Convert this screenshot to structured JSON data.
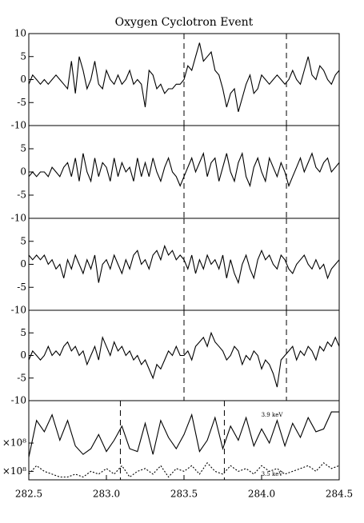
{
  "chart_data": [
    {
      "type": "line",
      "title": "Oxygen Cyclotron Event",
      "x": [
        282.5,
        282.525,
        282.55,
        282.575,
        282.6,
        282.625,
        282.65,
        282.675,
        282.7,
        282.725,
        282.75,
        282.775,
        282.8,
        282.825,
        282.85,
        282.875,
        282.9,
        282.925,
        282.95,
        282.975,
        283.0,
        283.025,
        283.05,
        283.075,
        283.1,
        283.125,
        283.15,
        283.175,
        283.2,
        283.225,
        283.25,
        283.275,
        283.3,
        283.325,
        283.35,
        283.375,
        283.4,
        283.425,
        283.45,
        283.475,
        283.5,
        283.525,
        283.55,
        283.575,
        283.6,
        283.625,
        283.65,
        283.675,
        283.7,
        283.725,
        283.75,
        283.775,
        283.8,
        283.825,
        283.85,
        283.875,
        283.9,
        283.925,
        283.95,
        283.975,
        284.0,
        284.025,
        284.05,
        284.075,
        284.1,
        284.125,
        284.15,
        284.175,
        284.2,
        284.225,
        284.25,
        284.275,
        284.3,
        284.325,
        284.35,
        284.375,
        284.4,
        284.425,
        284.45,
        284.475,
        284.5
      ],
      "series": [
        {
          "color": "#000000",
          "values": [
            -1,
            1,
            0,
            -1,
            0,
            -1,
            0,
            1,
            0,
            -1,
            -2,
            4,
            -3,
            5,
            2,
            -2,
            0,
            4,
            -1,
            -2,
            2,
            0,
            -1,
            1,
            -1,
            0,
            2,
            -1,
            0,
            -1,
            -6,
            2,
            1,
            -2,
            -1,
            -3,
            -2,
            -2,
            -1,
            -1,
            0,
            3,
            2,
            5,
            8,
            4,
            5,
            6,
            2,
            1,
            -2,
            -6,
            -3,
            -2,
            -7,
            -4,
            -1,
            1,
            -3,
            -2,
            1,
            0,
            -1,
            0,
            1,
            0,
            -1,
            0,
            2,
            0,
            -1,
            2,
            5,
            1,
            0,
            3,
            2,
            0,
            -1,
            1,
            2
          ]
        }
      ],
      "vlines": [
        283.5,
        284.16
      ],
      "xlim": [
        282.5,
        284.5
      ],
      "ylim": [
        -10,
        10
      ],
      "yticks": [
        -10,
        -5,
        0,
        5,
        10
      ]
    },
    {
      "type": "line",
      "x": [
        282.5,
        282.525,
        282.55,
        282.575,
        282.6,
        282.625,
        282.65,
        282.675,
        282.7,
        282.725,
        282.75,
        282.775,
        282.8,
        282.825,
        282.85,
        282.875,
        282.9,
        282.925,
        282.95,
        282.975,
        283.0,
        283.025,
        283.05,
        283.075,
        283.1,
        283.125,
        283.15,
        283.175,
        283.2,
        283.225,
        283.25,
        283.275,
        283.3,
        283.325,
        283.35,
        283.375,
        283.4,
        283.425,
        283.45,
        283.475,
        283.5,
        283.525,
        283.55,
        283.575,
        283.6,
        283.625,
        283.65,
        283.675,
        283.7,
        283.725,
        283.75,
        283.775,
        283.8,
        283.825,
        283.85,
        283.875,
        283.9,
        283.925,
        283.95,
        283.975,
        284.0,
        284.025,
        284.05,
        284.075,
        284.1,
        284.125,
        284.15,
        284.175,
        284.2,
        284.225,
        284.25,
        284.275,
        284.3,
        284.325,
        284.35,
        284.375,
        284.4,
        284.425,
        284.45,
        284.475,
        284.5
      ],
      "series": [
        {
          "color": "#000000",
          "values": [
            -1,
            0,
            -1,
            0,
            0,
            -1,
            1,
            0,
            -1,
            1,
            2,
            -1,
            3,
            -2,
            4,
            0,
            -2,
            3,
            -1,
            2,
            1,
            -2,
            3,
            -1,
            2,
            0,
            1,
            -2,
            3,
            -1,
            2,
            -1,
            3,
            0,
            -2,
            1,
            3,
            0,
            -1,
            -3,
            -1,
            1,
            3,
            0,
            2,
            4,
            -1,
            2,
            3,
            -2,
            1,
            4,
            0,
            -2,
            2,
            4,
            -1,
            -3,
            1,
            3,
            0,
            -2,
            3,
            1,
            -1,
            2,
            0,
            -3,
            -1,
            1,
            3,
            0,
            2,
            4,
            1,
            0,
            2,
            3,
            0,
            1,
            2
          ]
        }
      ],
      "vlines": [
        283.5,
        284.16
      ],
      "xlim": [
        282.5,
        284.5
      ],
      "ylim": [
        -10,
        10
      ],
      "yticks": [
        -10,
        -5,
        0,
        5
      ]
    },
    {
      "type": "line",
      "x": [
        282.5,
        282.525,
        282.55,
        282.575,
        282.6,
        282.625,
        282.65,
        282.675,
        282.7,
        282.725,
        282.75,
        282.775,
        282.8,
        282.825,
        282.85,
        282.875,
        282.9,
        282.925,
        282.95,
        282.975,
        283.0,
        283.025,
        283.05,
        283.075,
        283.1,
        283.125,
        283.15,
        283.175,
        283.2,
        283.225,
        283.25,
        283.275,
        283.3,
        283.325,
        283.35,
        283.375,
        283.4,
        283.425,
        283.45,
        283.475,
        283.5,
        283.525,
        283.55,
        283.575,
        283.6,
        283.625,
        283.65,
        283.675,
        283.7,
        283.725,
        283.75,
        283.775,
        283.8,
        283.825,
        283.85,
        283.875,
        283.9,
        283.925,
        283.95,
        283.975,
        284.0,
        284.025,
        284.05,
        284.075,
        284.1,
        284.125,
        284.15,
        284.175,
        284.2,
        284.225,
        284.25,
        284.275,
        284.3,
        284.325,
        284.35,
        284.375,
        284.4,
        284.425,
        284.45,
        284.475,
        284.5
      ],
      "series": [
        {
          "color": "#000000",
          "values": [
            2,
            1,
            2,
            1,
            2,
            0,
            1,
            -1,
            0,
            -3,
            1,
            -1,
            2,
            0,
            -2,
            1,
            -1,
            2,
            -4,
            0,
            1,
            -1,
            2,
            0,
            -2,
            1,
            -1,
            2,
            3,
            0,
            1,
            -1,
            2,
            3,
            1,
            4,
            2,
            3,
            1,
            2,
            1,
            -1,
            2,
            -2,
            1,
            -1,
            2,
            0,
            1,
            -1,
            2,
            -3,
            1,
            -2,
            -4,
            0,
            2,
            -1,
            -3,
            1,
            3,
            1,
            2,
            0,
            -1,
            2,
            1,
            -1,
            -2,
            0,
            1,
            2,
            0,
            -1,
            1,
            -1,
            0,
            -3,
            -1,
            0,
            1
          ]
        }
      ],
      "vlines": [
        283.5,
        284.16
      ],
      "xlim": [
        282.5,
        284.5
      ],
      "ylim": [
        -10,
        10
      ],
      "yticks": [
        -10,
        -5,
        0,
        5
      ]
    },
    {
      "type": "line",
      "x": [
        282.5,
        282.525,
        282.55,
        282.575,
        282.6,
        282.625,
        282.65,
        282.675,
        282.7,
        282.725,
        282.75,
        282.775,
        282.8,
        282.825,
        282.85,
        282.875,
        282.9,
        282.925,
        282.95,
        282.975,
        283.0,
        283.025,
        283.05,
        283.075,
        283.1,
        283.125,
        283.15,
        283.175,
        283.2,
        283.225,
        283.25,
        283.275,
        283.3,
        283.325,
        283.35,
        283.375,
        283.4,
        283.425,
        283.45,
        283.475,
        283.5,
        283.525,
        283.55,
        283.575,
        283.6,
        283.625,
        283.65,
        283.675,
        283.7,
        283.725,
        283.75,
        283.775,
        283.8,
        283.825,
        283.85,
        283.875,
        283.9,
        283.925,
        283.95,
        283.975,
        284.0,
        284.025,
        284.05,
        284.075,
        284.1,
        284.125,
        284.15,
        284.175,
        284.2,
        284.225,
        284.25,
        284.275,
        284.3,
        284.325,
        284.35,
        284.375,
        284.4,
        284.425,
        284.45,
        284.475,
        284.5
      ],
      "series": [
        {
          "color": "#000000",
          "values": [
            -1,
            1,
            0,
            -1,
            0,
            2,
            0,
            1,
            0,
            2,
            3,
            1,
            2,
            0,
            1,
            -2,
            0,
            2,
            -1,
            4,
            2,
            0,
            3,
            1,
            2,
            0,
            1,
            -1,
            0,
            -2,
            -1,
            -3,
            -5,
            -2,
            -3,
            -1,
            1,
            0,
            2,
            0,
            0,
            1,
            -1,
            2,
            3,
            4,
            2,
            5,
            3,
            2,
            1,
            -1,
            0,
            2,
            1,
            -2,
            0,
            -1,
            1,
            0,
            -3,
            -1,
            -2,
            -4,
            -7,
            -1,
            0,
            1,
            2,
            -1,
            1,
            0,
            2,
            1,
            -1,
            2,
            1,
            3,
            2,
            4,
            2
          ]
        }
      ],
      "vlines": [
        283.5,
        284.16
      ],
      "xlim": [
        282.5,
        284.5
      ],
      "ylim": [
        -10,
        10
      ],
      "yticks": [
        -10,
        -5,
        0,
        5
      ]
    },
    {
      "type": "line",
      "x": [
        282.5,
        282.55,
        282.6,
        282.65,
        282.7,
        282.75,
        282.8,
        282.85,
        282.9,
        282.95,
        283.0,
        283.05,
        283.1,
        283.15,
        283.2,
        283.25,
        283.3,
        283.35,
        283.4,
        283.45,
        283.5,
        283.55,
        283.6,
        283.65,
        283.7,
        283.75,
        283.8,
        283.85,
        283.9,
        283.95,
        284.0,
        284.05,
        284.1,
        284.15,
        284.2,
        284.25,
        284.3,
        284.35,
        284.4,
        284.45,
        284.5
      ],
      "series": [
        {
          "name": "3.9 keV",
          "color": "#000000",
          "line_style": "solid",
          "values": [
            1.5,
            2.8,
            2.4,
            3.0,
            2.1,
            2.8,
            1.9,
            1.6,
            1.8,
            2.3,
            1.7,
            2.1,
            2.6,
            1.8,
            1.7,
            2.7,
            1.6,
            2.8,
            2.2,
            1.8,
            2.3,
            3.0,
            1.7,
            2.1,
            2.9,
            1.8,
            2.6,
            2.1,
            2.9,
            1.9,
            2.5,
            2.0,
            2.8,
            1.9,
            2.7,
            2.2,
            2.9,
            2.4,
            2.5,
            3.1,
            3.1
          ]
        },
        {
          "name": "3.5 keV",
          "color": "#000000",
          "line_style": "dotted",
          "values": [
            0.9,
            1.2,
            1.0,
            0.9,
            0.8,
            0.8,
            0.9,
            0.8,
            1.0,
            0.9,
            1.1,
            0.9,
            1.2,
            0.8,
            1.0,
            1.1,
            0.9,
            1.2,
            0.8,
            1.1,
            1.0,
            1.2,
            0.9,
            1.3,
            1.0,
            0.9,
            1.2,
            1.0,
            1.1,
            0.9,
            1.2,
            1.0,
            1.1,
            0.9,
            1.0,
            1.1,
            1.2,
            1.0,
            1.3,
            1.1,
            1.2
          ]
        }
      ],
      "vlines": [
        283.09,
        283.76
      ],
      "xlim": [
        282.5,
        284.5
      ],
      "ylim": [
        0.7,
        3.5
      ],
      "yticks": [
        {
          "value": 1,
          "label": "×10⁸"
        },
        {
          "value": 2,
          "label": "×10⁸"
        }
      ],
      "xticks": [
        282.5,
        {
          "value": 283,
          "label": "283.0"
        },
        283.5,
        {
          "value": 284,
          "label": "284.0"
        },
        284.5
      ]
    }
  ]
}
